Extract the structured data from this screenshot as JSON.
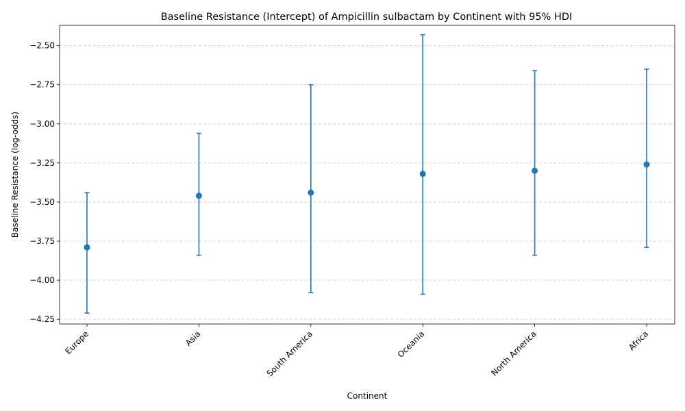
{
  "chart_data": {
    "type": "errorbar",
    "title": "Baseline Resistance (Intercept) of Ampicillin sulbactam by Continent with 95% HDI",
    "xlabel": "Continent",
    "ylabel": "Baseline Resistance (log-odds)",
    "categories": [
      "Europe",
      "Asia",
      "South America",
      "Oceania",
      "North America",
      "Africa"
    ],
    "values": [
      -3.79,
      -3.46,
      -3.44,
      -3.32,
      -3.3,
      -3.26
    ],
    "hdi_lower": [
      -4.21,
      -3.84,
      -4.08,
      -4.09,
      -3.84,
      -3.79
    ],
    "hdi_upper": [
      -3.44,
      -3.06,
      -2.75,
      -2.43,
      -2.66,
      -2.65
    ],
    "ylim": [
      -4.28,
      -2.37
    ],
    "yticks": [
      -4.25,
      -4.0,
      -3.75,
      -3.5,
      -3.25,
      -3.0,
      -2.75,
      -2.5
    ],
    "ytick_labels": [
      "−4.25",
      "−4.00",
      "−3.75",
      "−3.50",
      "−3.25",
      "−3.00",
      "−2.75",
      "−2.50"
    ],
    "grid": "horizontal dashed",
    "color": "#1f77b4"
  }
}
